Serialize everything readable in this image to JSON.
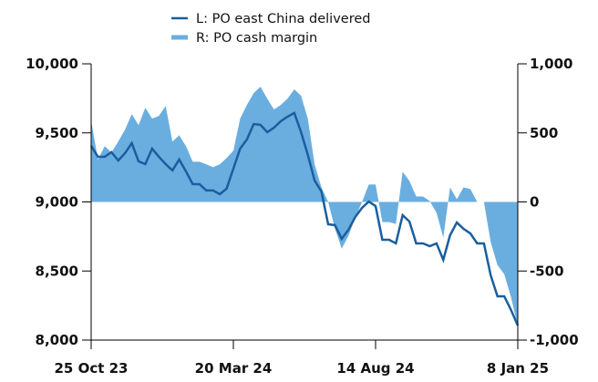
{
  "chart_data": {
    "type": "line-area",
    "categories": [
      "25 Oct 23",
      null,
      null,
      null,
      null,
      null,
      null,
      null,
      null,
      null,
      null,
      null,
      null,
      null,
      null,
      null,
      null,
      null,
      null,
      null,
      null,
      "20 Mar 24",
      null,
      null,
      null,
      null,
      null,
      null,
      null,
      null,
      null,
      null,
      null,
      null,
      null,
      null,
      null,
      null,
      null,
      null,
      null,
      null,
      "14 Aug 24",
      null,
      null,
      null,
      null,
      null,
      null,
      null,
      null,
      null,
      null,
      null,
      null,
      null,
      null,
      null,
      null,
      null,
      null,
      null,
      null,
      "8 Jan 25"
    ],
    "series": [
      {
        "name": "L: PO east China delivered",
        "color": "#1a5e9e",
        "kind": "line",
        "axis": "y",
        "values": [
          9406,
          9327,
          9327,
          9360,
          9300,
          9353,
          9426,
          9294,
          9274,
          9386,
          9327,
          9274,
          9228,
          9307,
          9221,
          9129,
          9129,
          9083,
          9083,
          9056,
          9096,
          9241,
          9386,
          9452,
          9564,
          9558,
          9505,
          9538,
          9584,
          9617,
          9644,
          9505,
          9340,
          9155,
          9076,
          8838,
          8832,
          8733,
          8799,
          8891,
          8957,
          9003,
          8970,
          8726,
          8726,
          8700,
          8904,
          8858,
          8700,
          8700,
          8680,
          8700,
          8581,
          8759,
          8851,
          8805,
          8772,
          8700,
          8700,
          8469,
          8317,
          8317,
          8218,
          8106
        ]
      },
      {
        "name": "R: PO cash margin",
        "color": "#6aaee0",
        "kind": "area",
        "axis": "y2",
        "values": [
          589,
          305,
          404,
          358,
          437,
          523,
          636,
          556,
          682,
          603,
          623,
          695,
          437,
          483,
          404,
          291,
          291,
          272,
          252,
          272,
          318,
          371,
          603,
          702,
          788,
          834,
          748,
          669,
          702,
          748,
          815,
          768,
          603,
          272,
          106,
          0,
          -192,
          -338,
          -245,
          -113,
          0,
          126,
          126,
          -146,
          -146,
          -159,
          219,
          152,
          40,
          40,
          7,
          -79,
          -258,
          106,
          20,
          106,
          93,
          0,
          0,
          -291,
          -457,
          -523,
          -689,
          -901
        ]
      }
    ],
    "ylim": [
      8000,
      10000
    ],
    "yticks": [
      {
        "value": 8000,
        "label": "8,000"
      },
      {
        "value": 8500,
        "label": "8,500"
      },
      {
        "value": 9000,
        "label": "9,000"
      },
      {
        "value": 9500,
        "label": "9,500"
      },
      {
        "value": 10000,
        "label": "10,000"
      }
    ],
    "y2lim": [
      -1000,
      1000
    ],
    "y2ticks": [
      {
        "value": -1000,
        "label": "-1,000"
      },
      -500,
      0,
      500,
      {
        "value": 1000,
        "label": "1,000"
      }
    ],
    "legend": "top"
  }
}
